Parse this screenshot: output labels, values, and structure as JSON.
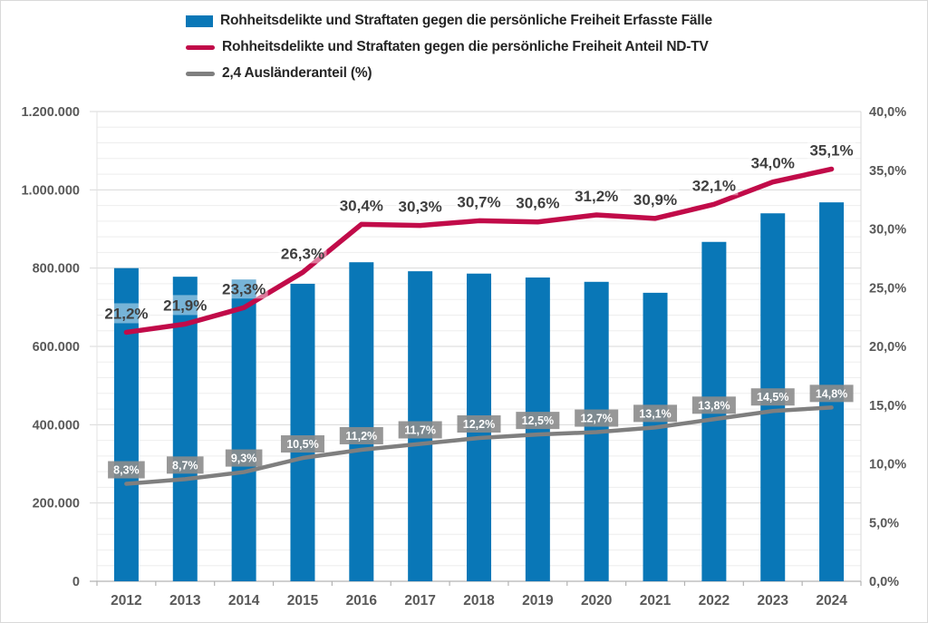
{
  "chart_data": {
    "type": "combo",
    "title": "",
    "categories": [
      "2012",
      "2013",
      "2014",
      "2015",
      "2016",
      "2017",
      "2018",
      "2019",
      "2020",
      "2021",
      "2022",
      "2023",
      "2024"
    ],
    "series": [
      {
        "id": "erfasste-faelle",
        "type": "bar",
        "axis": "left",
        "name": "Rohheitsdelikte und Straftaten gegen die persönliche Freiheit Erfasste Fälle",
        "color": "#0977b7",
        "values": [
          800000,
          778000,
          771000,
          760000,
          815000,
          792000,
          786000,
          776000,
          765000,
          737000,
          867000,
          940000,
          968000
        ]
      },
      {
        "id": "anteil-ndtv",
        "type": "line",
        "axis": "right",
        "name": "Rohheitsdelikte und Straftaten gegen die persönliche Freiheit Anteil ND-TV",
        "color": "#c10b49",
        "values": [
          21.2,
          21.9,
          23.3,
          26.3,
          30.4,
          30.3,
          30.7,
          30.6,
          31.2,
          30.9,
          32.1,
          34.0,
          35.1
        ],
        "labels": [
          "21,2%",
          "21,9%",
          "23,3%",
          "26,3%",
          "30,4%",
          "30,3%",
          "30,7%",
          "30,6%",
          "31,2%",
          "30,9%",
          "32,1%",
          "34,0%",
          "35,1%"
        ],
        "label_color": "#3f3f3f"
      },
      {
        "id": "auslaenderanteil",
        "type": "line",
        "axis": "right",
        "name": "2,4 Ausländeranteil (%)",
        "color": "#7f7f7f",
        "values": [
          8.3,
          8.7,
          9.3,
          10.5,
          11.2,
          11.7,
          12.2,
          12.5,
          12.7,
          13.1,
          13.8,
          14.5,
          14.8
        ],
        "labels": [
          "8,3%",
          "8,7%",
          "9,3%",
          "10,5%",
          "11,2%",
          "11,7%",
          "12,2%",
          "12,5%",
          "12,7%",
          "13,1%",
          "13,8%",
          "14,5%",
          "14,8%"
        ],
        "label_box_color": "#8c8c8c",
        "label_text_color": "#ffffff"
      }
    ],
    "left_axis": {
      "min": 0,
      "max": 1200000,
      "tick_labels": [
        "1.200.000",
        "1.000.000",
        "800.000",
        "600.000",
        "400.000",
        "200.000",
        "0"
      ]
    },
    "right_axis": {
      "min": 0,
      "max": 40,
      "tick_labels": [
        "40,0%",
        "35,0%",
        "30,0%",
        "25,0%",
        "20,0%",
        "15,0%",
        "10,0%",
        "5,0%",
        "0,0%"
      ]
    },
    "legend_position": "top-left",
    "grid": {
      "major_horizontal": true,
      "minor_horizontal": true
    },
    "axis_label_color": "#595959"
  }
}
